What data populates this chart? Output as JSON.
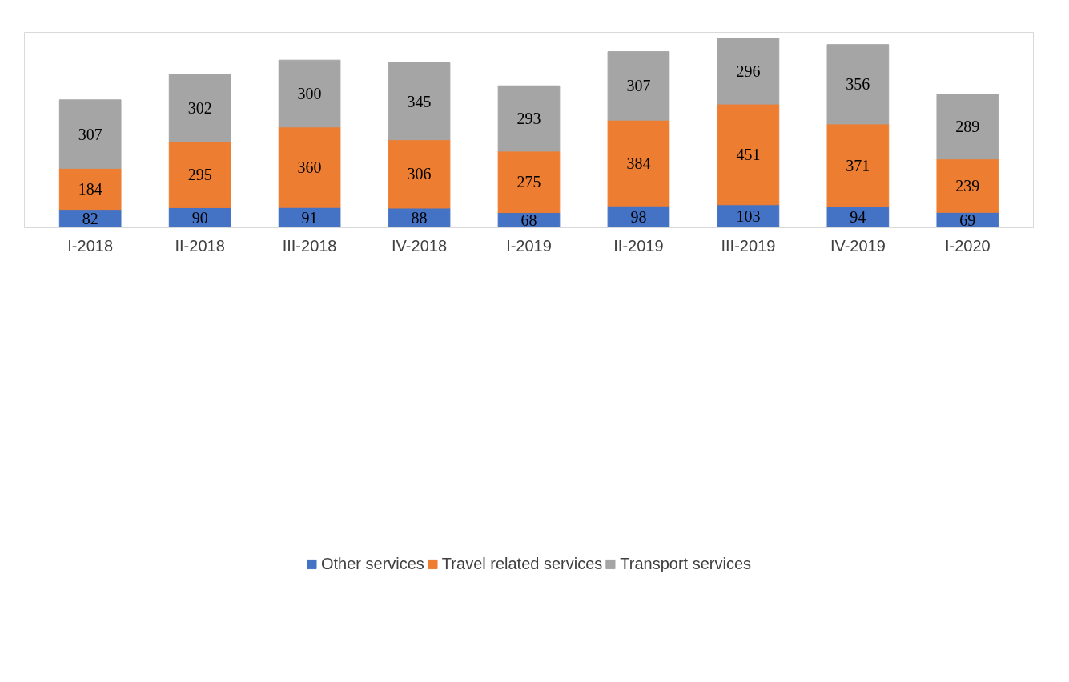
{
  "chart_data": {
    "type": "bar",
    "stacked": true,
    "data_labels": true,
    "grid": false,
    "legend": "bottom",
    "tick_labels": "x",
    "categories": [
      "I-2018",
      "II-2018",
      "III-2018",
      "IV-2018",
      "I-2019",
      "II-2019",
      "III-2019",
      "IV-2019",
      "I-2020"
    ],
    "series": [
      {
        "name": "Other services",
        "color": "#4472c4",
        "values": [
          82,
          90,
          91,
          88,
          68,
          98,
          103,
          94,
          69
        ]
      },
      {
        "name": "Travel related services",
        "color": "#ed7d31",
        "values": [
          184,
          295,
          360,
          306,
          275,
          384,
          451,
          371,
          239
        ]
      },
      {
        "name": "Transport services",
        "color": "#a5a5a5",
        "values": [
          307,
          302,
          300,
          345,
          293,
          307,
          296,
          356,
          289
        ]
      }
    ]
  }
}
